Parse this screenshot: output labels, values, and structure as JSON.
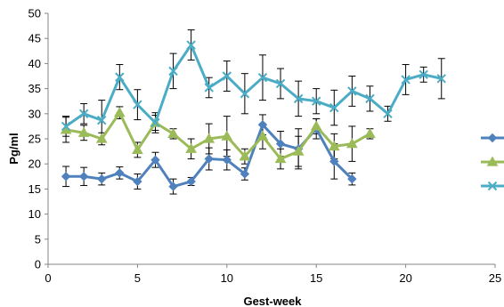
{
  "chart_data": {
    "type": "line",
    "title": "",
    "xlabel": "Gest-week",
    "ylabel": "Pg/ml",
    "xlim": [
      0,
      25
    ],
    "ylim": [
      0,
      50
    ],
    "x_ticks": [
      "0",
      "5",
      "10",
      "15",
      "20",
      "25"
    ],
    "y_ticks": [
      "0",
      "5",
      "10",
      "15",
      "20",
      "25",
      "30",
      "35",
      "40",
      "45",
      "50"
    ],
    "grid": false,
    "legend_position": "right",
    "series": [
      {
        "color": "#4f81bd",
        "marker": "diamond",
        "x": [
          1,
          2,
          3,
          4,
          5,
          6,
          7,
          8,
          9,
          10,
          11,
          12,
          13,
          14,
          15,
          16,
          17
        ],
        "y": [
          17.5,
          17.5,
          17,
          18.2,
          16.5,
          20.8,
          15.5,
          16.5,
          21,
          20.8,
          18,
          27.8,
          24,
          23,
          27,
          20.5,
          17
        ],
        "err": [
          2,
          1.8,
          1.2,
          1.2,
          1.5,
          1.5,
          1.5,
          0.8,
          2.2,
          2,
          1.2,
          2,
          2.5,
          4,
          2,
          3.5,
          1.2
        ]
      },
      {
        "color": "#9bbb59",
        "marker": "triangle",
        "x": [
          1,
          2,
          3,
          4,
          5,
          6,
          7,
          8,
          9,
          10,
          11,
          12,
          13,
          14,
          15,
          16,
          17,
          18
        ],
        "y": [
          26.8,
          26.2,
          25,
          30.2,
          22.8,
          28.2,
          26,
          23,
          25,
          25.5,
          21.5,
          25.5,
          21,
          22.5,
          27.5,
          23.5,
          24,
          26
        ],
        "err": [
          2.5,
          1.5,
          1.2,
          1.2,
          1.5,
          1.5,
          1,
          2,
          3,
          4,
          1.5,
          2.5,
          2,
          3,
          1.5,
          2.5,
          3.5,
          1
        ]
      },
      {
        "color": "#4bacc6",
        "marker": "x",
        "x": [
          1,
          2,
          3,
          4,
          5,
          6,
          7,
          8,
          9,
          10,
          11,
          12,
          13,
          14,
          15,
          16,
          17,
          18,
          19,
          20,
          21,
          22
        ],
        "y": [
          27.5,
          30,
          28.7,
          37.3,
          31.8,
          28.2,
          38.5,
          43.7,
          35.2,
          37.5,
          34,
          37.2,
          36,
          33,
          32.5,
          31.2,
          34.5,
          33,
          30,
          36.8,
          37.8,
          37
        ],
        "err": [
          2,
          2,
          4,
          2.5,
          3,
          2,
          3.5,
          3,
          2,
          3,
          4,
          4.5,
          3,
          3.5,
          2.5,
          3.5,
          3,
          2.5,
          1.5,
          3,
          1.5,
          4
        ]
      }
    ]
  }
}
